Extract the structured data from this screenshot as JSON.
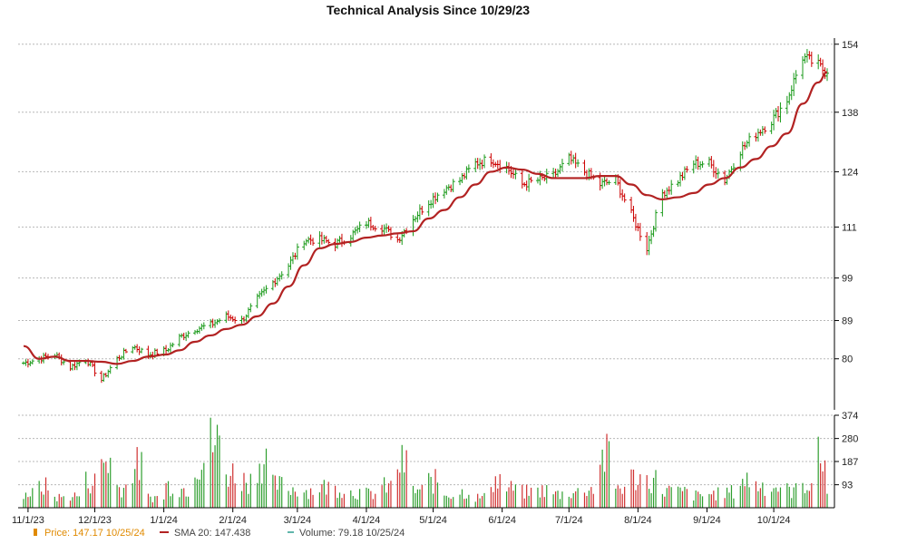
{
  "chart_data": {
    "type": "line",
    "title": "Technical Analysis Since 10/29/23",
    "price_axis": {
      "ticks": [
        "154",
        "138",
        "124",
        "111",
        "99",
        "89",
        "80"
      ]
    },
    "volume_axis": {
      "ticks": [
        "374",
        "280",
        "187",
        "93"
      ]
    },
    "x_ticks": [
      "11/1/23",
      "12/1/23",
      "1/1/24",
      "2/1/24",
      "3/1/24",
      "4/1/24",
      "5/1/24",
      "6/1/24",
      "7/1/24",
      "8/1/24",
      "9/1/24",
      "10/1/24"
    ],
    "legend": {
      "price_label": "Price: 147.17 10/25/24",
      "sma_label": "SMA 20: 147.438",
      "volume_label": "Volume: 79.18 10/25/24"
    },
    "price_series": [
      [
        "2023-10-30",
        79
      ],
      [
        "2023-11-06",
        80
      ],
      [
        "2023-11-13",
        81
      ],
      [
        "2023-11-20",
        78
      ],
      [
        "2023-11-27",
        80
      ],
      [
        "2023-12-04",
        75
      ],
      [
        "2023-12-11",
        80
      ],
      [
        "2023-12-18",
        83
      ],
      [
        "2023-12-25",
        81
      ],
      [
        "2024-01-02",
        82
      ],
      [
        "2024-01-08",
        85
      ],
      [
        "2024-01-15",
        87
      ],
      [
        "2024-01-22",
        88
      ],
      [
        "2024-01-29",
        90
      ],
      [
        "2024-02-05",
        89
      ],
      [
        "2024-02-12",
        94
      ],
      [
        "2024-02-19",
        98
      ],
      [
        "2024-02-26",
        102
      ],
      [
        "2024-03-04",
        108
      ],
      [
        "2024-03-11",
        108
      ],
      [
        "2024-03-18",
        107
      ],
      [
        "2024-03-25",
        109
      ],
      [
        "2024-04-01",
        112
      ],
      [
        "2024-04-08",
        111
      ],
      [
        "2024-04-15",
        108
      ],
      [
        "2024-04-22",
        113
      ],
      [
        "2024-04-29",
        117
      ],
      [
        "2024-05-06",
        120
      ],
      [
        "2024-05-13",
        122
      ],
      [
        "2024-05-20",
        126
      ],
      [
        "2024-05-27",
        127
      ],
      [
        "2024-06-03",
        125
      ],
      [
        "2024-06-10",
        121
      ],
      [
        "2024-06-17",
        122
      ],
      [
        "2024-06-24",
        123
      ],
      [
        "2024-07-01",
        127
      ],
      [
        "2024-07-08",
        124
      ],
      [
        "2024-07-15",
        121
      ],
      [
        "2024-07-22",
        122
      ],
      [
        "2024-07-29",
        114
      ],
      [
        "2024-08-05",
        106
      ],
      [
        "2024-08-12",
        119
      ],
      [
        "2024-08-19",
        122
      ],
      [
        "2024-08-26",
        126
      ],
      [
        "2024-09-02",
        126
      ],
      [
        "2024-09-09",
        122
      ],
      [
        "2024-09-16",
        129
      ],
      [
        "2024-09-23",
        133
      ],
      [
        "2024-09-30",
        136
      ],
      [
        "2024-10-07",
        141
      ],
      [
        "2024-10-14",
        151
      ],
      [
        "2024-10-21",
        149
      ],
      [
        "2024-10-25",
        147.17
      ]
    ],
    "sma20_series": [
      [
        "2023-10-30",
        83
      ],
      [
        "2023-11-06",
        80
      ],
      [
        "2023-11-13",
        80.5
      ],
      [
        "2023-11-20",
        79.5
      ],
      [
        "2023-11-27",
        79.5
      ],
      [
        "2023-12-04",
        79.3
      ],
      [
        "2023-12-11",
        78.8
      ],
      [
        "2023-12-18",
        79.5
      ],
      [
        "2023-12-25",
        80.5
      ],
      [
        "2024-01-02",
        81
      ],
      [
        "2024-01-08",
        82
      ],
      [
        "2024-01-15",
        84
      ],
      [
        "2024-01-22",
        85.5
      ],
      [
        "2024-01-29",
        87
      ],
      [
        "2024-02-05",
        88
      ],
      [
        "2024-02-12",
        90
      ],
      [
        "2024-02-19",
        93
      ],
      [
        "2024-02-26",
        97
      ],
      [
        "2024-03-04",
        102
      ],
      [
        "2024-03-11",
        106
      ],
      [
        "2024-03-18",
        107
      ],
      [
        "2024-03-25",
        107.5
      ],
      [
        "2024-04-01",
        108.5
      ],
      [
        "2024-04-08",
        109
      ],
      [
        "2024-04-15",
        109.5
      ],
      [
        "2024-04-22",
        110
      ],
      [
        "2024-04-29",
        113
      ],
      [
        "2024-05-06",
        115
      ],
      [
        "2024-05-13",
        118
      ],
      [
        "2024-05-20",
        121
      ],
      [
        "2024-05-27",
        124
      ],
      [
        "2024-06-03",
        125
      ],
      [
        "2024-06-10",
        124.5
      ],
      [
        "2024-06-17",
        123.5
      ],
      [
        "2024-06-24",
        122.5
      ],
      [
        "2024-07-01",
        122.5
      ],
      [
        "2024-07-08",
        122.5
      ],
      [
        "2024-07-15",
        123
      ],
      [
        "2024-07-22",
        123
      ],
      [
        "2024-07-29",
        121
      ],
      [
        "2024-08-05",
        118.5
      ],
      [
        "2024-08-12",
        117.5
      ],
      [
        "2024-08-19",
        118
      ],
      [
        "2024-08-26",
        119
      ],
      [
        "2024-09-02",
        121
      ],
      [
        "2024-09-09",
        122.5
      ],
      [
        "2024-09-16",
        125
      ],
      [
        "2024-09-23",
        127
      ],
      [
        "2024-09-30",
        130
      ],
      [
        "2024-10-07",
        133
      ],
      [
        "2024-10-14",
        140
      ],
      [
        "2024-10-21",
        145
      ],
      [
        "2024-10-25",
        147.438
      ]
    ],
    "volume_series": [
      [
        "2023-10-30",
        80
      ],
      [
        "2023-11-06",
        120
      ],
      [
        "2023-11-13",
        60
      ],
      [
        "2023-11-20",
        70
      ],
      [
        "2023-11-27",
        150
      ],
      [
        "2023-12-04",
        270
      ],
      [
        "2023-12-11",
        120
      ],
      [
        "2023-12-18",
        240
      ],
      [
        "2023-12-25",
        60
      ],
      [
        "2024-01-02",
        130
      ],
      [
        "2024-01-08",
        110
      ],
      [
        "2024-01-15",
        270
      ],
      [
        "2024-01-22",
        374
      ],
      [
        "2024-01-29",
        200
      ],
      [
        "2024-02-05",
        160
      ],
      [
        "2024-02-12",
        270
      ],
      [
        "2024-02-19",
        130
      ],
      [
        "2024-02-26",
        110
      ],
      [
        "2024-03-04",
        100
      ],
      [
        "2024-03-11",
        120
      ],
      [
        "2024-03-18",
        110
      ],
      [
        "2024-03-25",
        90
      ],
      [
        "2024-04-01",
        80
      ],
      [
        "2024-04-08",
        120
      ],
      [
        "2024-04-15",
        250
      ],
      [
        "2024-04-22",
        100
      ],
      [
        "2024-04-29",
        150
      ],
      [
        "2024-05-06",
        80
      ],
      [
        "2024-05-13",
        90
      ],
      [
        "2024-05-20",
        60
      ],
      [
        "2024-05-27",
        160
      ],
      [
        "2024-06-03",
        110
      ],
      [
        "2024-06-10",
        90
      ],
      [
        "2024-06-17",
        100
      ],
      [
        "2024-06-24",
        80
      ],
      [
        "2024-07-01",
        90
      ],
      [
        "2024-07-08",
        110
      ],
      [
        "2024-07-15",
        290
      ],
      [
        "2024-07-22",
        120
      ],
      [
        "2024-07-29",
        170
      ],
      [
        "2024-08-05",
        160
      ],
      [
        "2024-08-12",
        100
      ],
      [
        "2024-08-19",
        90
      ],
      [
        "2024-08-26",
        70
      ],
      [
        "2024-09-02",
        80
      ],
      [
        "2024-09-09",
        90
      ],
      [
        "2024-09-16",
        160
      ],
      [
        "2024-09-23",
        130
      ],
      [
        "2024-09-30",
        120
      ],
      [
        "2024-10-07",
        100
      ],
      [
        "2024-10-14",
        140
      ],
      [
        "2024-10-21",
        280
      ],
      [
        "2024-10-25",
        79.18
      ]
    ],
    "colors": {
      "price_up": "#1a9a1a",
      "price_down": "#cc0000",
      "sma": "#b22222",
      "volume_up": "#2e9e2e",
      "volume_down": "#d03030",
      "grid": "#b8b8b8",
      "price_legend": "#e08a00",
      "volume_legend": "#2a9d8f"
    },
    "grid": true,
    "legend_position": "bottom-left"
  }
}
